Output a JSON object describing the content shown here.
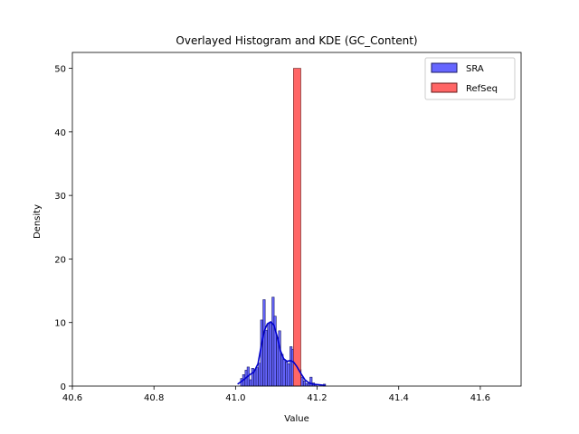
{
  "chart_data": {
    "type": "bar",
    "title": "Overlayed Histogram and KDE (GC_Content)",
    "xlabel": "Value",
    "ylabel": "Density",
    "xlim": [
      40.6,
      41.7
    ],
    "ylim": [
      0,
      52.5
    ],
    "x_ticks": [
      "40.6",
      "40.8",
      "41.0",
      "41.2",
      "41.4",
      "41.6"
    ],
    "y_ticks": [
      "0",
      "10",
      "20",
      "30",
      "40",
      "50"
    ],
    "legend_position": "upper-right",
    "grid": false,
    "series": [
      {
        "name": "SRA",
        "kind": "histogram",
        "fill": "#6666ff",
        "edge": "#1a1a66",
        "bin_width": 0.0055,
        "bins": [
          {
            "x": 41.015,
            "y": 1.2
          },
          {
            "x": 41.02,
            "y": 1.8
          },
          {
            "x": 41.026,
            "y": 2.5
          },
          {
            "x": 41.031,
            "y": 3.0
          },
          {
            "x": 41.037,
            "y": 1.0
          },
          {
            "x": 41.042,
            "y": 2.8
          },
          {
            "x": 41.048,
            "y": 2.6
          },
          {
            "x": 41.053,
            "y": 2.9
          },
          {
            "x": 41.059,
            "y": 3.6
          },
          {
            "x": 41.064,
            "y": 10.4
          },
          {
            "x": 41.07,
            "y": 13.6
          },
          {
            "x": 41.075,
            "y": 8.8
          },
          {
            "x": 41.081,
            "y": 9.8
          },
          {
            "x": 41.086,
            "y": 10.0
          },
          {
            "x": 41.092,
            "y": 14.0
          },
          {
            "x": 41.097,
            "y": 11.0
          },
          {
            "x": 41.103,
            "y": 7.6
          },
          {
            "x": 41.108,
            "y": 8.7
          },
          {
            "x": 41.114,
            "y": 5.0
          },
          {
            "x": 41.119,
            "y": 4.2
          },
          {
            "x": 41.125,
            "y": 3.8
          },
          {
            "x": 41.13,
            "y": 3.5
          },
          {
            "x": 41.136,
            "y": 6.2
          },
          {
            "x": 41.141,
            "y": 5.8
          },
          {
            "x": 41.147,
            "y": 3.5
          },
          {
            "x": 41.152,
            "y": 3.0
          },
          {
            "x": 41.158,
            "y": 2.6
          },
          {
            "x": 41.163,
            "y": 1.4
          },
          {
            "x": 41.169,
            "y": 0.8
          },
          {
            "x": 41.174,
            "y": 0.4
          },
          {
            "x": 41.18,
            "y": 0.6
          },
          {
            "x": 41.185,
            "y": 1.4
          },
          {
            "x": 41.191,
            "y": 0.5
          },
          {
            "x": 41.196,
            "y": 0.3
          },
          {
            "x": 41.218,
            "y": 0.3
          }
        ],
        "kde_color": "#0000cc",
        "kde": [
          [
            41.005,
            0.3
          ],
          [
            41.02,
            1.0
          ],
          [
            41.035,
            1.8
          ],
          [
            41.045,
            2.2
          ],
          [
            41.055,
            3.5
          ],
          [
            41.062,
            6.0
          ],
          [
            41.07,
            8.6
          ],
          [
            41.078,
            9.8
          ],
          [
            41.086,
            10.1
          ],
          [
            41.094,
            9.6
          ],
          [
            41.102,
            7.8
          ],
          [
            41.11,
            5.6
          ],
          [
            41.118,
            4.3
          ],
          [
            41.126,
            3.9
          ],
          [
            41.134,
            4.0
          ],
          [
            41.142,
            3.8
          ],
          [
            41.15,
            3.1
          ],
          [
            41.16,
            2.0
          ],
          [
            41.17,
            1.0
          ],
          [
            41.18,
            0.5
          ],
          [
            41.19,
            0.3
          ],
          [
            41.205,
            0.2
          ],
          [
            41.22,
            0.1
          ]
        ]
      },
      {
        "name": "RefSeq",
        "kind": "histogram",
        "fill": "#ff6666",
        "edge": "#661a1a",
        "bin_width": 0.018,
        "bins": [
          {
            "x": 41.151,
            "y": 50.0
          }
        ]
      }
    ]
  }
}
